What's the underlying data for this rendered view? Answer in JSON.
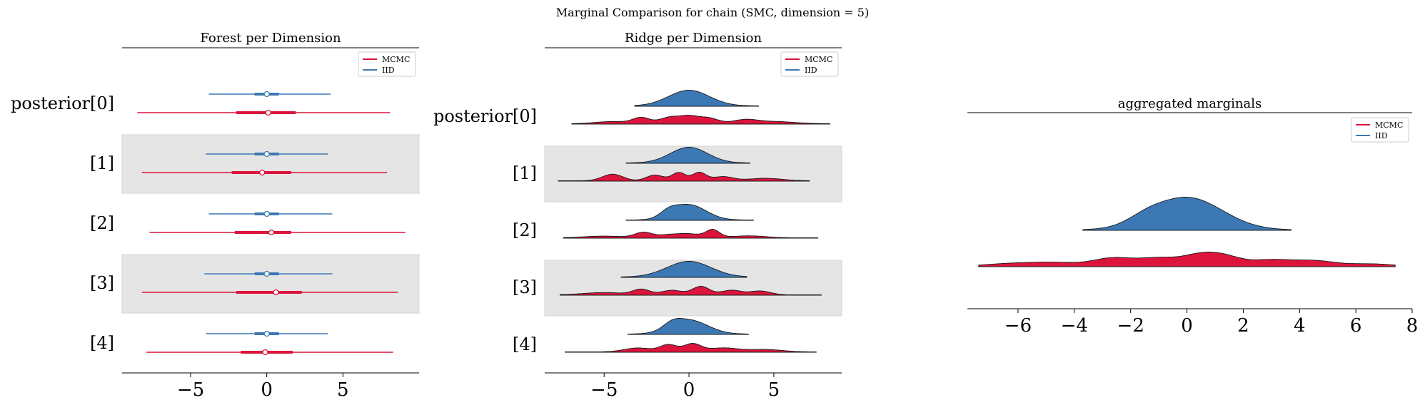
{
  "suptitle": "Marginal Comparison for chain (SMC, dimension = 5)",
  "colors": {
    "mcmc": "#dc143c",
    "iid": "#3c78b4",
    "band": "#e5e5e5"
  },
  "chart_data": [
    {
      "type": "forest",
      "title": "Forest per Dimension",
      "row_labels": [
        "posterior[0]",
        "[1]",
        "[2]",
        "[3]",
        "[4]"
      ],
      "x_ticks": [
        -5,
        0,
        5
      ],
      "xlim": [
        -9.5,
        10
      ],
      "legend": {
        "entries": [
          "MCMC",
          "IID"
        ],
        "position": "top-right"
      },
      "series": [
        {
          "name": "IID",
          "color": "#3c78b4",
          "rows": [
            {
              "min": -3.8,
              "q1": -0.8,
              "median": 0.0,
              "q3": 0.8,
              "max": 4.2
            },
            {
              "min": -4.0,
              "q1": -0.8,
              "median": 0.0,
              "q3": 0.8,
              "max": 4.0
            },
            {
              "min": -3.8,
              "q1": -0.8,
              "median": 0.0,
              "q3": 0.8,
              "max": 4.3
            },
            {
              "min": -4.1,
              "q1": -0.8,
              "median": 0.0,
              "q3": 0.8,
              "max": 4.3
            },
            {
              "min": -4.0,
              "q1": -0.8,
              "median": 0.0,
              "q3": 0.8,
              "max": 4.0
            }
          ]
        },
        {
          "name": "MCMC",
          "color": "#dc143c",
          "rows": [
            {
              "min": -8.5,
              "q1": -2.0,
              "median": 0.1,
              "q3": 1.9,
              "max": 8.1
            },
            {
              "min": -8.2,
              "q1": -2.3,
              "median": -0.3,
              "q3": 1.6,
              "max": 7.9
            },
            {
              "min": -7.7,
              "q1": -2.1,
              "median": 0.3,
              "q3": 1.6,
              "max": 9.1
            },
            {
              "min": -8.2,
              "q1": -2.0,
              "median": 0.6,
              "q3": 2.3,
              "max": 8.6
            },
            {
              "min": -7.9,
              "q1": -1.7,
              "median": -0.1,
              "q3": 1.7,
              "max": 8.3
            }
          ]
        }
      ]
    },
    {
      "type": "ridge",
      "title": "Ridge per Dimension",
      "row_labels": [
        "posterior[0]",
        "[1]",
        "[2]",
        "[3]",
        "[4]"
      ],
      "x_ticks": [
        -5,
        0,
        5
      ],
      "xlim": [
        -8.5,
        9
      ],
      "legend": {
        "entries": [
          "MCMC",
          "IID"
        ],
        "position": "top-right"
      },
      "series": [
        {
          "name": "IID",
          "color": "#3c78b4",
          "rows": [
            {
              "range": [
                -3.2,
                4.1
              ],
              "bumps": [
                [
                  0.0,
                  1.2,
                  1.0
                ]
              ]
            },
            {
              "range": [
                -3.7,
                3.6
              ],
              "bumps": [
                [
                  0.0,
                  1.1,
                  1.0
                ]
              ]
            },
            {
              "range": [
                -3.7,
                3.8
              ],
              "bumps": [
                [
                  0.0,
                  1.0,
                  1.0
                ],
                [
                  -1.2,
                  0.5,
                  0.35
                ]
              ]
            },
            {
              "range": [
                -4.0,
                3.4
              ],
              "bumps": [
                [
                  0.0,
                  1.3,
                  1.0
                ]
              ]
            },
            {
              "range": [
                -3.6,
                3.5
              ],
              "bumps": [
                [
                  0.0,
                  1.1,
                  1.0
                ],
                [
                  -1.0,
                  0.5,
                  0.35
                ]
              ]
            }
          ]
        },
        {
          "name": "MCMC",
          "color": "#dc143c",
          "rows": [
            {
              "range": [
                -6.9,
                8.3
              ],
              "bumps": [
                [
                  -2.8,
                  0.5,
                  0.8
                ],
                [
                  -1.1,
                  0.6,
                  0.9
                ],
                [
                  0.0,
                  0.5,
                  0.85
                ],
                [
                  1.1,
                  0.6,
                  0.8
                ],
                [
                  3.3,
                  0.7,
                  0.5
                ],
                [
                  -4.5,
                  1.0,
                  0.3
                ],
                [
                  5.0,
                  1.2,
                  0.3
                ]
              ]
            },
            {
              "range": [
                -7.7,
                7.1
              ],
              "bumps": [
                [
                  -4.5,
                  0.6,
                  0.8
                ],
                [
                  -2.0,
                  0.5,
                  0.7
                ],
                [
                  -0.6,
                  0.4,
                  1.0
                ],
                [
                  0.6,
                  0.4,
                  1.0
                ],
                [
                  2.0,
                  0.6,
                  0.5
                ],
                [
                  4.5,
                  1.0,
                  0.3
                ]
              ]
            },
            {
              "range": [
                -7.4,
                7.6
              ],
              "bumps": [
                [
                  -2.7,
                  0.5,
                  0.9
                ],
                [
                  -1.0,
                  0.8,
                  0.6
                ],
                [
                  1.4,
                  0.4,
                  1.4
                ],
                [
                  0.2,
                  0.6,
                  0.5
                ],
                [
                  3.5,
                  1.0,
                  0.35
                ],
                [
                  -5.0,
                  1.2,
                  0.3
                ]
              ]
            },
            {
              "range": [
                -7.6,
                7.8
              ],
              "bumps": [
                [
                  -2.8,
                  0.5,
                  0.7
                ],
                [
                  -1.0,
                  0.6,
                  0.6
                ],
                [
                  0.7,
                  0.5,
                  1.1
                ],
                [
                  2.5,
                  0.6,
                  0.6
                ],
                [
                  4.2,
                  0.6,
                  0.5
                ],
                [
                  -5.0,
                  1.2,
                  0.3
                ]
              ]
            },
            {
              "range": [
                -7.3,
                7.5
              ],
              "bumps": [
                [
                  -1.2,
                  0.5,
                  0.9
                ],
                [
                  0.2,
                  0.5,
                  1.0
                ],
                [
                  -3.0,
                  0.8,
                  0.5
                ],
                [
                  2.0,
                  0.9,
                  0.5
                ],
                [
                  4.5,
                  1.0,
                  0.3
                ]
              ]
            }
          ]
        }
      ]
    },
    {
      "type": "density",
      "title": "aggregated marginals",
      "x_ticks": [
        -6,
        -4,
        -2,
        0,
        2,
        4,
        6,
        8
      ],
      "xlim": [
        -7.8,
        8.0
      ],
      "legend": {
        "entries": [
          "MCMC",
          "IID"
        ],
        "position": "top-right"
      },
      "series": [
        {
          "name": "IID",
          "color": "#3c78b4",
          "range": [
            -3.7,
            3.7
          ],
          "bumps": [
            [
              0.0,
              1.25,
              1.0
            ],
            [
              -1.5,
              0.6,
              0.15
            ]
          ]
        },
        {
          "name": "MCMC",
          "color": "#dc143c",
          "range": [
            -7.4,
            7.4
          ],
          "bumps": [
            [
              -2.6,
              0.7,
              0.8
            ],
            [
              -1.0,
              0.7,
              0.8
            ],
            [
              0.4,
              0.6,
              0.95
            ],
            [
              1.3,
              0.6,
              0.9
            ],
            [
              3.0,
              0.8,
              0.65
            ],
            [
              4.6,
              0.7,
              0.5
            ],
            [
              -4.8,
              1.0,
              0.4
            ],
            [
              6.5,
              0.8,
              0.25
            ],
            [
              -6.5,
              0.8,
              0.2
            ]
          ]
        }
      ]
    }
  ]
}
